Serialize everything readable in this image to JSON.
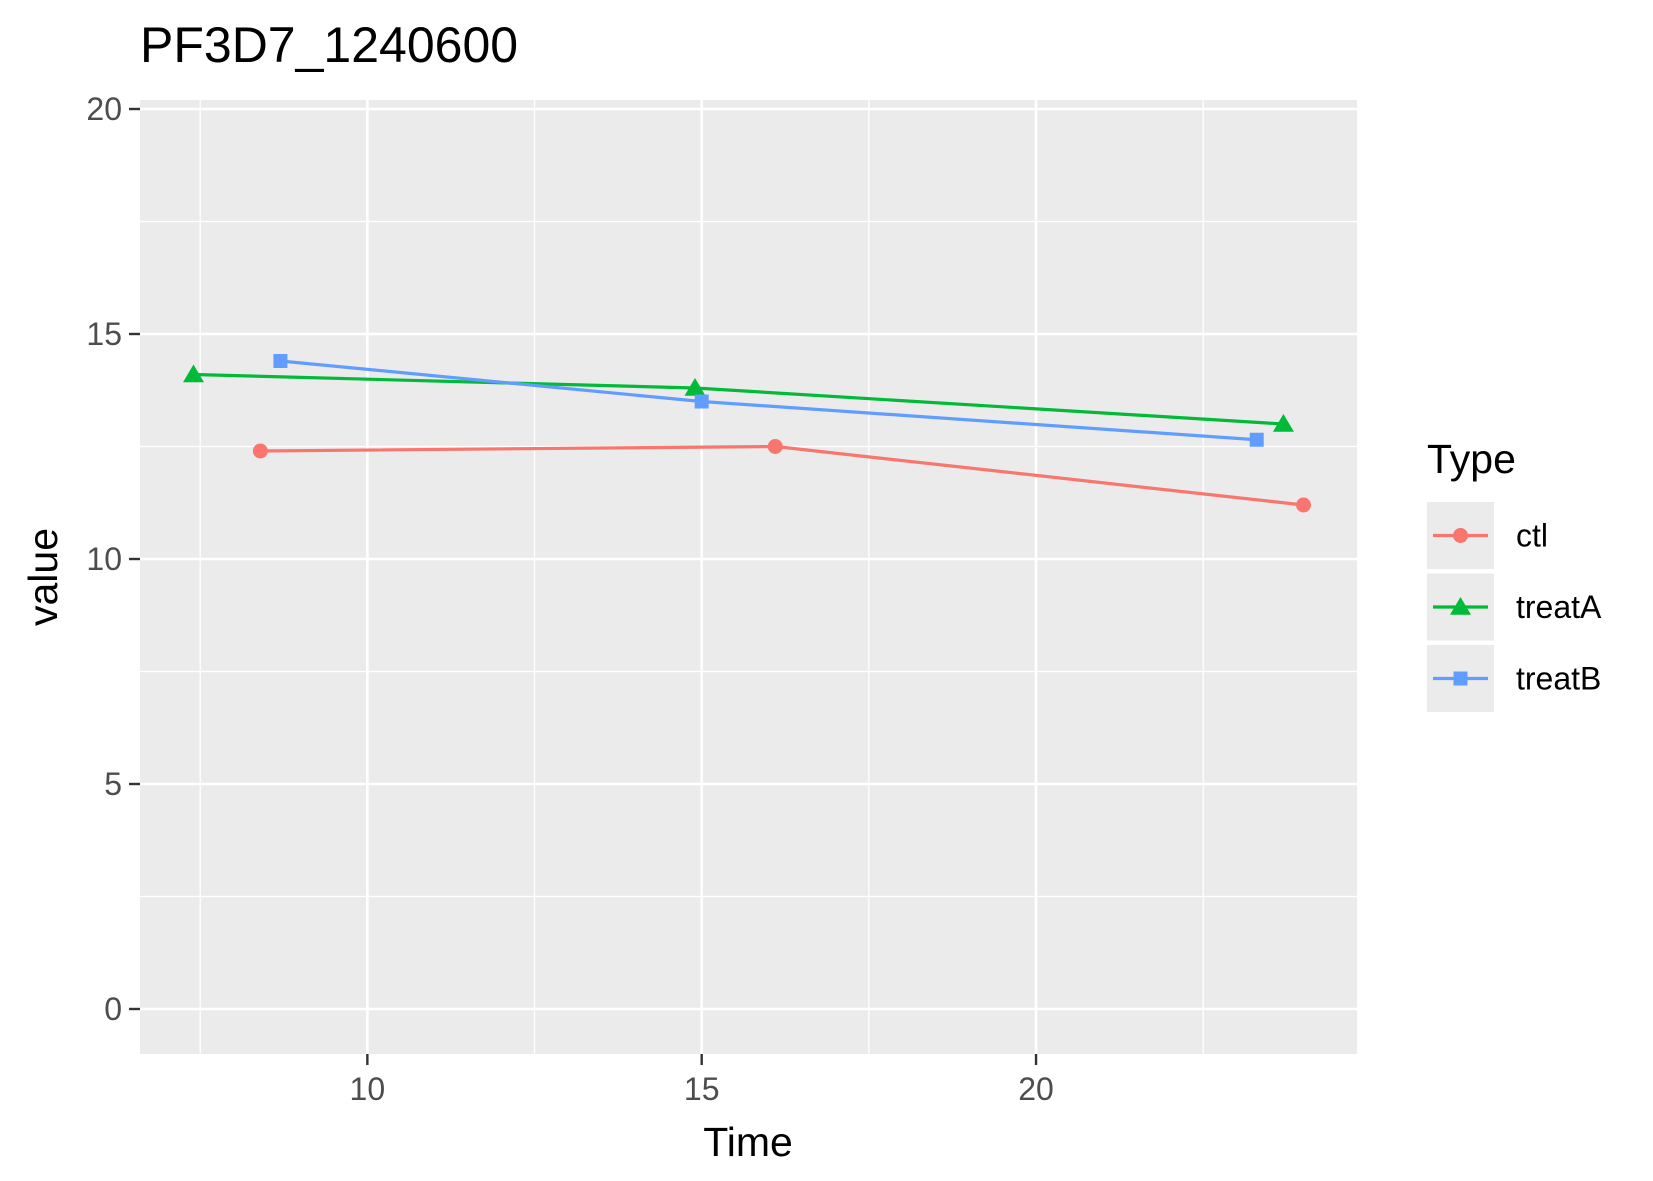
{
  "chart_data": {
    "type": "line",
    "title": "PF3D7_1240600",
    "xlabel": "Time",
    "ylabel": "value",
    "xlim": [
      6.6,
      24.8
    ],
    "ylim": [
      -1,
      20.2
    ],
    "xticks": [
      10,
      15,
      20
    ],
    "yticks": [
      0,
      5,
      10,
      15,
      20
    ],
    "x_minor": [
      7.5,
      12.5,
      17.5,
      22.5
    ],
    "y_minor": [
      2.5,
      7.5,
      12.5,
      17.5
    ],
    "grid": true,
    "legend": {
      "title": "Type",
      "position": "right"
    },
    "series": [
      {
        "name": "ctl",
        "color": "#F8766D",
        "marker": "circle",
        "x": [
          8.4,
          16.1,
          24.0
        ],
        "y": [
          12.4,
          12.5,
          11.2
        ]
      },
      {
        "name": "treatA",
        "color": "#00BA38",
        "marker": "triangle",
        "x": [
          7.4,
          14.9,
          23.7
        ],
        "y": [
          14.1,
          13.8,
          13.0
        ]
      },
      {
        "name": "treatB",
        "color": "#619CFF",
        "marker": "square",
        "x": [
          8.7,
          15.0,
          23.3
        ],
        "y": [
          14.4,
          13.5,
          12.65
        ]
      }
    ]
  }
}
